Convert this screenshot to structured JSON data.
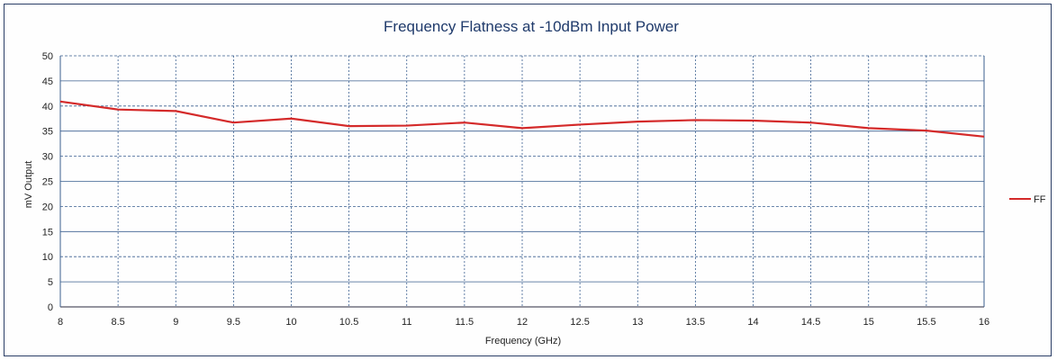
{
  "chart_data": {
    "type": "line",
    "title": "Frequency Flatness at -10dBm Input Power",
    "xlabel": "Frequency (GHz)",
    "ylabel": "mV Output",
    "x": [
      8,
      8.5,
      9,
      9.5,
      10,
      10.5,
      11,
      11.5,
      12,
      12.5,
      13,
      13.5,
      14,
      14.5,
      15,
      15.5,
      16
    ],
    "x_tick_labels": [
      "8",
      "8.5",
      "9",
      "9.5",
      "10",
      "10.5",
      "11",
      "11.5",
      "12",
      "12.5",
      "13",
      "13.5",
      "14",
      "14.5",
      "15",
      "15.5",
      "16"
    ],
    "y_ticks": [
      0,
      5,
      10,
      15,
      20,
      25,
      30,
      35,
      40,
      45,
      50
    ],
    "xlim": [
      8,
      16
    ],
    "ylim": [
      0,
      50
    ],
    "grid": true,
    "legend_position": "right",
    "series": [
      {
        "name": "FF",
        "color": "#d42a2a",
        "values": [
          40.9,
          39.3,
          39.0,
          36.7,
          37.5,
          36.0,
          36.1,
          36.7,
          35.6,
          36.3,
          36.9,
          37.2,
          37.1,
          36.7,
          35.6,
          35.1,
          33.9
        ]
      }
    ]
  }
}
